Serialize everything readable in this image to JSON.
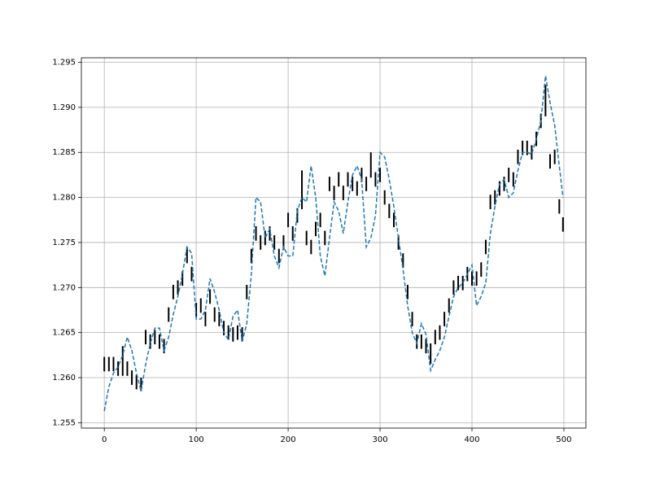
{
  "chart_data": {
    "type": "line",
    "grid": true,
    "xlim": [
      -24.95,
      523.95
    ],
    "ylim": [
      1.2544,
      1.2955
    ],
    "xticks": [
      0,
      100,
      200,
      300,
      400,
      500
    ],
    "yticks": [
      1.255,
      {
        "value": 1.26,
        "label": "1.260"
      },
      1.265,
      {
        "value": 1.27,
        "label": "1.270"
      },
      1.275,
      {
        "value": 1.28,
        "label": "1.280"
      },
      1.285,
      {
        "value": 1.29,
        "label": "1.290"
      },
      1.295
    ],
    "x": [
      0,
      5,
      10,
      15,
      20,
      25,
      30,
      35,
      40,
      45,
      50,
      55,
      60,
      65,
      70,
      75,
      80,
      85,
      90,
      95,
      100,
      105,
      110,
      115,
      120,
      125,
      130,
      135,
      140,
      145,
      150,
      155,
      160,
      165,
      170,
      175,
      180,
      185,
      190,
      195,
      200,
      205,
      210,
      215,
      220,
      225,
      230,
      235,
      240,
      245,
      250,
      255,
      260,
      265,
      270,
      275,
      280,
      285,
      290,
      295,
      300,
      305,
      310,
      315,
      320,
      325,
      330,
      335,
      340,
      345,
      350,
      355,
      360,
      365,
      370,
      375,
      380,
      385,
      390,
      395,
      400,
      405,
      410,
      415,
      420,
      425,
      430,
      435,
      440,
      445,
      450,
      455,
      460,
      465,
      470,
      475,
      480,
      485,
      490,
      495,
      499
    ],
    "series": [
      {
        "style": "bars",
        "color": "#000000",
        "low": [
          1.2607,
          1.2607,
          1.2607,
          1.2602,
          1.2602,
          1.2602,
          1.2592,
          1.2587,
          1.2585,
          1.2637,
          1.2632,
          1.2637,
          1.2632,
          1.2627,
          1.2662,
          1.2687,
          1.2692,
          1.2702,
          1.2727,
          1.2707,
          1.2667,
          1.2672,
          1.2657,
          1.2682,
          1.2662,
          1.2657,
          1.2647,
          1.2642,
          1.264,
          1.2642,
          1.264,
          1.2687,
          1.2727,
          1.2752,
          1.2742,
          1.2747,
          1.2752,
          1.2742,
          1.2727,
          1.2742,
          1.2767,
          1.2752,
          1.2772,
          1.2787,
          1.2747,
          1.2737,
          1.2757,
          1.2767,
          1.2747,
          1.2807,
          1.2797,
          1.2812,
          1.2797,
          1.2812,
          1.2807,
          1.2802,
          1.2817,
          1.2807,
          1.2822,
          1.2812,
          1.2817,
          1.2792,
          1.2777,
          1.2767,
          1.2742,
          1.2722,
          1.2687,
          1.2657,
          1.2632,
          1.2632,
          1.2627,
          1.2615,
          1.2637,
          1.2642,
          1.2657,
          1.2672,
          1.2692,
          1.2697,
          1.2697,
          1.2707,
          1.2702,
          1.2702,
          1.2712,
          1.2737,
          1.2787,
          1.2792,
          1.2802,
          1.2807,
          1.2817,
          1.2812,
          1.2837,
          1.2847,
          1.2847,
          1.2842,
          1.2857,
          1.2877,
          1.289,
          1.2832,
          1.2837,
          1.2782,
          1.2762
        ],
        "high": [
          1.2623,
          1.2623,
          1.2623,
          1.2618,
          1.2635,
          1.2618,
          1.2608,
          1.2603,
          1.26,
          1.2653,
          1.2648,
          1.2653,
          1.2648,
          1.2643,
          1.2678,
          1.2703,
          1.2708,
          1.2718,
          1.2745,
          1.2723,
          1.2683,
          1.2688,
          1.2673,
          1.2698,
          1.2678,
          1.2673,
          1.2663,
          1.2658,
          1.2656,
          1.2658,
          1.2656,
          1.2703,
          1.2743,
          1.2768,
          1.2758,
          1.2763,
          1.2768,
          1.2758,
          1.2743,
          1.2758,
          1.2783,
          1.2768,
          1.2788,
          1.283,
          1.2763,
          1.2753,
          1.2773,
          1.2783,
          1.2763,
          1.2823,
          1.2813,
          1.2828,
          1.2813,
          1.2828,
          1.2823,
          1.2818,
          1.2833,
          1.2823,
          1.285,
          1.2828,
          1.2833,
          1.2808,
          1.2793,
          1.2783,
          1.2758,
          1.2738,
          1.2703,
          1.2673,
          1.2648,
          1.2648,
          1.2643,
          1.2638,
          1.2653,
          1.2658,
          1.2673,
          1.2688,
          1.2708,
          1.2713,
          1.2713,
          1.2723,
          1.2718,
          1.2718,
          1.2728,
          1.2753,
          1.2803,
          1.2808,
          1.2818,
          1.2823,
          1.2833,
          1.2828,
          1.2853,
          1.2863,
          1.2863,
          1.2858,
          1.2873,
          1.2893,
          1.2925,
          1.2848,
          1.2853,
          1.2798,
          1.2778
        ]
      },
      {
        "style": "dashed",
        "color": "#1f77b4",
        "values": [
          1.2563,
          1.259,
          1.2605,
          1.2612,
          1.2625,
          1.2645,
          1.263,
          1.2605,
          1.2585,
          1.2615,
          1.2638,
          1.2655,
          1.2655,
          1.263,
          1.2645,
          1.267,
          1.269,
          1.2715,
          1.2745,
          1.2738,
          1.2665,
          1.2665,
          1.2675,
          1.271,
          1.2695,
          1.2675,
          1.265,
          1.2642,
          1.2668,
          1.2675,
          1.264,
          1.266,
          1.2715,
          1.28,
          1.2795,
          1.2755,
          1.2765,
          1.2735,
          1.2722,
          1.2745,
          1.2735,
          1.2735,
          1.2785,
          1.28,
          1.2795,
          1.2835,
          1.28,
          1.2735,
          1.2713,
          1.2755,
          1.2795,
          1.2785,
          1.276,
          1.2795,
          1.2825,
          1.2835,
          1.282,
          1.2745,
          1.2755,
          1.278,
          1.285,
          1.2845,
          1.282,
          1.279,
          1.2755,
          1.272,
          1.268,
          1.265,
          1.2638,
          1.266,
          1.2648,
          1.2608,
          1.262,
          1.263,
          1.2645,
          1.2668,
          1.269,
          1.27,
          1.2705,
          1.2715,
          1.2725,
          1.268,
          1.269,
          1.2705,
          1.276,
          1.279,
          1.2815,
          1.282,
          1.28,
          1.2805,
          1.283,
          1.285,
          1.285,
          1.2848,
          1.2865,
          1.2885,
          1.2935,
          1.2905,
          1.288,
          1.2835,
          1.28
        ]
      }
    ]
  }
}
